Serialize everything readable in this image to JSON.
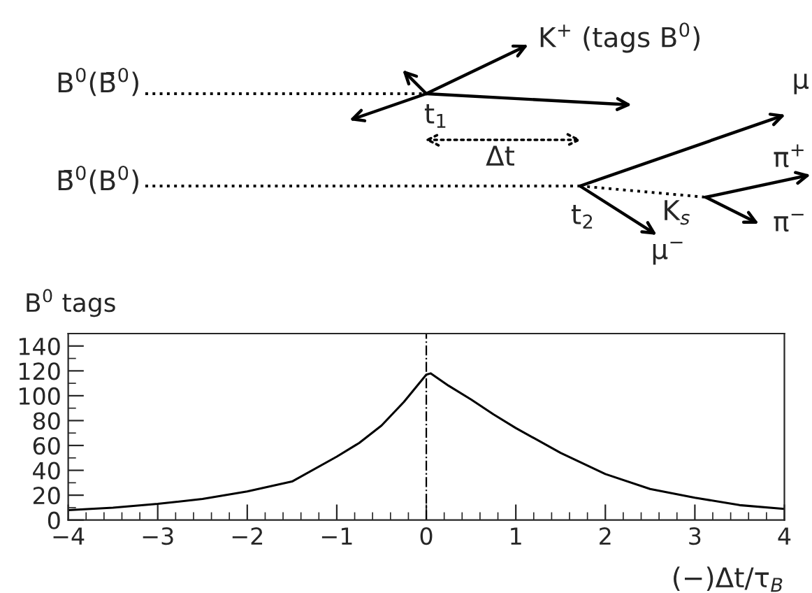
{
  "chart_data": {
    "type": "line",
    "xlabel": "(−)Δt/τ$_{B}$",
    "ylabel": "B$^{0}$ tags",
    "x": [
      -4,
      -3.5,
      -3,
      -2.5,
      -2,
      -1.5,
      -1,
      -0.75,
      -0.5,
      -0.25,
      0,
      0.05,
      0.25,
      0.5,
      0.75,
      1,
      1.5,
      2,
      2.5,
      3,
      3.5,
      4
    ],
    "series": [
      {
        "color": "#000000",
        "values": [
          8,
          10,
          13,
          17,
          23,
          31,
          51,
          62,
          76,
          95,
          117,
          118,
          108,
          97,
          85,
          74,
          54,
          37,
          25,
          18,
          12,
          9
        ]
      }
    ],
    "xlim": [
      -4,
      4
    ],
    "xticks": [
      -4,
      -3,
      -2,
      -1,
      0,
      1,
      2,
      3,
      4
    ],
    "ylim": [
      0,
      150
    ],
    "yticks": [
      0,
      20,
      40,
      60,
      80,
      100,
      120,
      140
    ],
    "ref_lines": [
      {
        "axis": "x",
        "value": 0,
        "line_style": "dashdot",
        "color": "#000000"
      }
    ],
    "grid": false,
    "legend": false,
    "marker": "none",
    "line_style": "solid",
    "annotations": [
      "B$^{0}$(B̄$^{0}$)",
      "B̄$^{0}$(B$^{0}$)",
      "K$^{+}$ (tags B$^{0}$)",
      "t$_{1}$",
      "Δt",
      "t$_{2}$",
      "μ",
      "π$^{+}$",
      "π$^{−}$",
      "K$_{s}$",
      "μ$^{−}$"
    ]
  }
}
